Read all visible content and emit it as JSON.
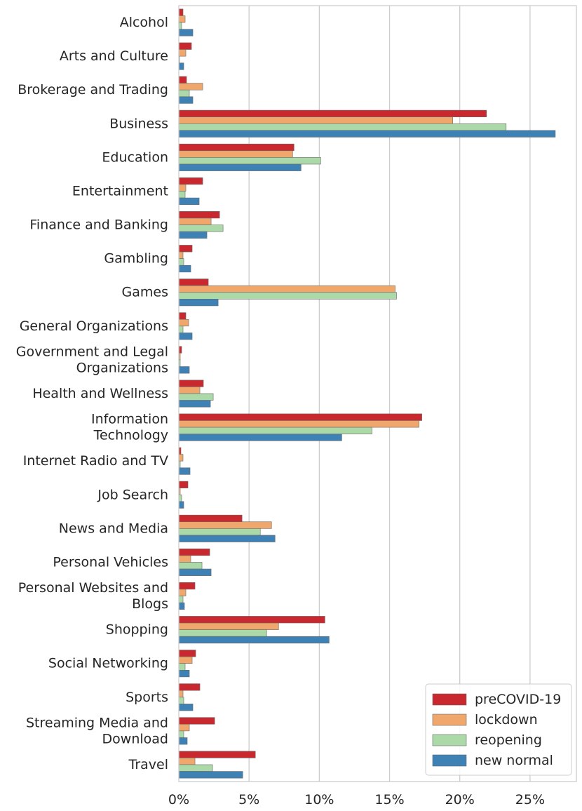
{
  "chart_data": {
    "type": "bar",
    "orientation": "horizontal",
    "title": "",
    "xlabel": "",
    "ylabel": "",
    "xlim": [
      0,
      28.3
    ],
    "x_ticks": [
      0,
      5,
      10,
      15,
      20,
      25
    ],
    "x_tick_labels": [
      "0%",
      "5%",
      "10%",
      "15%",
      "20%",
      "25%"
    ],
    "grid": "vertical",
    "legend_position": "bottom-right",
    "categories": [
      [
        "Alcohol"
      ],
      [
        "Arts and Culture"
      ],
      [
        "Brokerage and Trading"
      ],
      [
        "Business"
      ],
      [
        "Education"
      ],
      [
        "Entertainment"
      ],
      [
        "Finance and Banking"
      ],
      [
        "Gambling"
      ],
      [
        "Games"
      ],
      [
        "General Organizations"
      ],
      [
        "Government and Legal",
        "Organizations"
      ],
      [
        "Health and Wellness"
      ],
      [
        "Information",
        "Technology"
      ],
      [
        "Internet Radio and TV"
      ],
      [
        "Job Search"
      ],
      [
        "News and Media"
      ],
      [
        "Personal Vehicles"
      ],
      [
        "Personal Websites and",
        "Blogs"
      ],
      [
        "Shopping"
      ],
      [
        "Social Networking"
      ],
      [
        "Sports"
      ],
      [
        "Streaming Media and",
        "Download"
      ],
      [
        "Travel"
      ]
    ],
    "series": [
      {
        "name": "preCOVID-19",
        "color": "#c9292e",
        "values": [
          0.3,
          0.9,
          0.55,
          21.9,
          8.2,
          1.7,
          2.9,
          0.95,
          2.1,
          0.5,
          0.2,
          1.75,
          17.3,
          0.15,
          0.65,
          4.5,
          2.2,
          1.15,
          10.4,
          1.2,
          1.5,
          2.55,
          5.45
        ]
      },
      {
        "name": "lockdown",
        "color": "#f0a76b",
        "values": [
          0.45,
          0.5,
          1.7,
          19.5,
          8.1,
          0.5,
          2.3,
          0.3,
          15.4,
          0.7,
          0.1,
          1.5,
          17.1,
          0.3,
          0.1,
          6.6,
          0.85,
          0.5,
          7.1,
          0.95,
          0.3,
          0.75,
          1.15
        ]
      },
      {
        "name": "reopening",
        "color": "#abd9a8",
        "values": [
          0.2,
          0.05,
          0.75,
          23.3,
          10.1,
          0.45,
          3.15,
          0.35,
          15.5,
          0.3,
          0.1,
          2.45,
          13.75,
          0.1,
          0.2,
          5.8,
          1.65,
          0.3,
          6.25,
          0.45,
          0.35,
          0.35,
          2.4
        ]
      },
      {
        "name": "new normal",
        "color": "#3e81b4",
        "values": [
          1.0,
          0.35,
          1.0,
          26.8,
          8.7,
          1.45,
          2.0,
          0.85,
          2.8,
          0.95,
          0.75,
          2.25,
          11.6,
          0.8,
          0.35,
          6.85,
          2.3,
          0.4,
          10.7,
          0.75,
          1.0,
          0.6,
          4.55
        ]
      }
    ]
  }
}
